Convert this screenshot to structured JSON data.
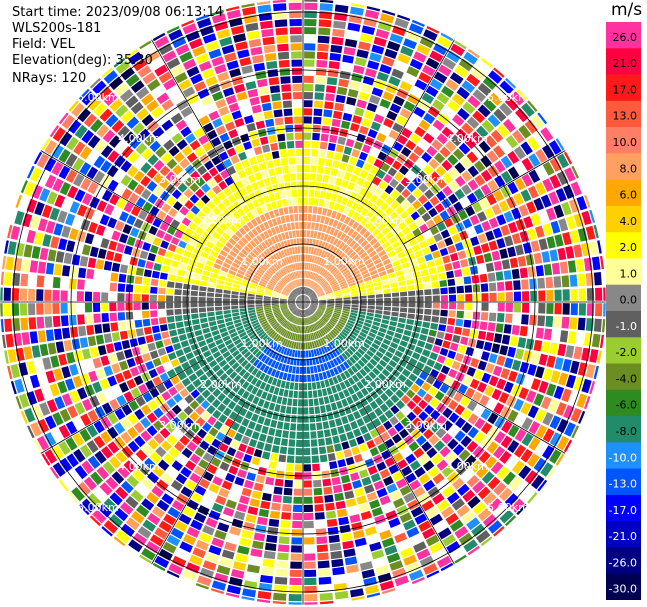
{
  "header": {
    "start_time": "Start time: 2023/09/08 06:13:14",
    "instrument": "WLS200s-181",
    "field": "Field: VEL",
    "elevation": "Elevation(deg): 35.30",
    "nrays": "NRays: 120"
  },
  "colorbar": {
    "units": "m/s",
    "levels": [
      {
        "label": "26.0",
        "color": "#ff33a0",
        "text": "#000000"
      },
      {
        "label": "21.0",
        "color": "#ff0040",
        "text": "#000000"
      },
      {
        "label": "17.0",
        "color": "#ff1a1a",
        "text": "#000000"
      },
      {
        "label": "13.0",
        "color": "#ff5a3c",
        "text": "#000000"
      },
      {
        "label": "10.0",
        "color": "#ff7f66",
        "text": "#000000"
      },
      {
        "label": "8.0",
        "color": "#ffa060",
        "text": "#000000"
      },
      {
        "label": "6.0",
        "color": "#ffa800",
        "text": "#000000"
      },
      {
        "label": "4.0",
        "color": "#ffd000",
        "text": "#000000"
      },
      {
        "label": "2.0",
        "color": "#ffff00",
        "text": "#000000"
      },
      {
        "label": "1.0",
        "color": "#ffff99",
        "text": "#000000"
      },
      {
        "label": "0.0",
        "color": "#888888",
        "text": "#000000"
      },
      {
        "label": "-1.0",
        "color": "#606060",
        "text": "#ffffff"
      },
      {
        "label": "-2.0",
        "color": "#9acd32",
        "text": "#000000"
      },
      {
        "label": "-4.0",
        "color": "#6b8e23",
        "text": "#000000"
      },
      {
        "label": "-6.0",
        "color": "#2e8b22",
        "text": "#000000"
      },
      {
        "label": "-8.0",
        "color": "#228b6a",
        "text": "#000000"
      },
      {
        "label": "-10.0",
        "color": "#1e90ff",
        "text": "#ffffff"
      },
      {
        "label": "-13.0",
        "color": "#0055ff",
        "text": "#ffffff"
      },
      {
        "label": "-17.0",
        "color": "#0000ff",
        "text": "#ffffff"
      },
      {
        "label": "-21.0",
        "color": "#0000c0",
        "text": "#ffffff"
      },
      {
        "label": "-26.0",
        "color": "#000080",
        "text": "#ffffff"
      },
      {
        "label": "-30.0",
        "color": "#000050",
        "text": "#ffffff"
      }
    ]
  },
  "chart_data": {
    "type": "ppi",
    "field": "VEL",
    "units": "m/s",
    "n_rays": 120,
    "range_rings_km": [
      1.0,
      2.0,
      3.0,
      4.0,
      5.0
    ],
    "ring_labels": [
      "1.00km",
      "2.00km",
      "3.00km",
      "4.00km",
      "5.00km"
    ],
    "spoke_angles_deg": [
      0,
      30,
      60,
      90,
      120,
      150,
      180,
      210,
      240,
      270,
      300,
      330
    ],
    "max_range_km": 5.0,
    "velocity_regions": [
      {
        "region": "north, 0.5-1.5 km",
        "velocity_ms": 9.0
      },
      {
        "region": "north, 1.5-2.6 km",
        "velocity_ms": 2.0
      },
      {
        "region": "east/west near center",
        "velocity_ms": -1.0
      },
      {
        "region": "south, 0.3-1.0 km",
        "velocity_ms": -3.0
      },
      {
        "region": "south, 1.0-2.5 km",
        "velocity_ms": -7.0
      },
      {
        "region": "south, 0.8-1.3 km",
        "velocity_ms": -10.0
      },
      {
        "region": "beyond 2.6 km",
        "velocity_ms": "noise"
      }
    ]
  }
}
